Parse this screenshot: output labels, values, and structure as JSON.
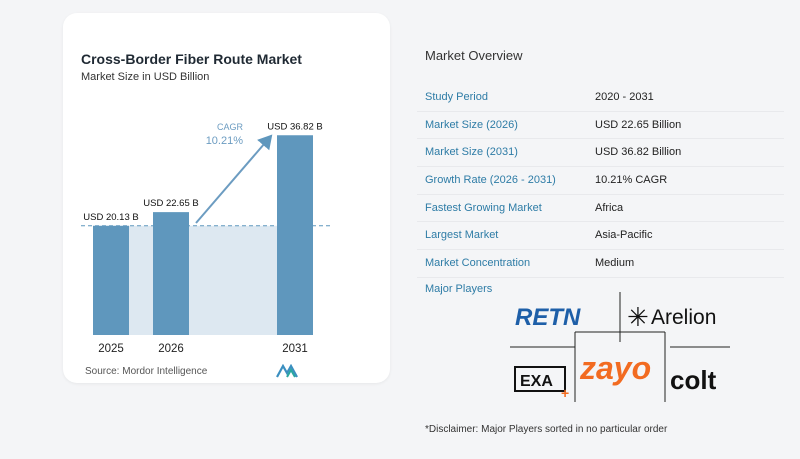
{
  "chart": {
    "title": "Cross-Border Fiber Route Market",
    "subtitle": "Market Size in USD Billion",
    "source": "Source: Mordor Intelligence",
    "cagr_label": "CAGR",
    "cagr_value": "10.21%"
  },
  "chart_data": {
    "type": "bar",
    "title": "Cross-Border Fiber Route Market",
    "subtitle": "Market Size in USD Billion",
    "categories": [
      "2025",
      "2026",
      "2031"
    ],
    "values": [
      20.13,
      22.65,
      36.82
    ],
    "data_labels": [
      "USD 20.13 B",
      "USD 22.65 B",
      "USD 36.82 B"
    ],
    "ylim": [
      0,
      40
    ],
    "grid": false,
    "reference_line_value": 20.13,
    "annotation": {
      "label": "CAGR",
      "value": "10.21%"
    }
  },
  "overview": {
    "title": "Market Overview",
    "rows": [
      {
        "key": "Study Period",
        "value": "2020 - 2031"
      },
      {
        "key": "Market Size (2026)",
        "value": "USD 22.65 Billion"
      },
      {
        "key": "Market Size (2031)",
        "value": "USD 36.82 Billion"
      },
      {
        "key": "Growth Rate (2026 - 2031)",
        "value": "10.21% CAGR"
      },
      {
        "key": "Fastest Growing Market",
        "value": "Africa"
      },
      {
        "key": "Largest Market",
        "value": "Asia-Pacific"
      },
      {
        "key": "Market Concentration",
        "value": "Medium"
      }
    ],
    "players_title": "Major Players",
    "players": [
      "RETN",
      "Arelion",
      "EXA",
      "zayo",
      "colt"
    ],
    "disclaimer": "*Disclaimer: Major Players sorted in no particular order"
  },
  "colors": {
    "bar": "#5f97bd",
    "bar_highlight_area": "#dde8f1",
    "accent": "#2e7ca6",
    "zayo": "#f26b21",
    "retn": "#1e5fa8"
  }
}
